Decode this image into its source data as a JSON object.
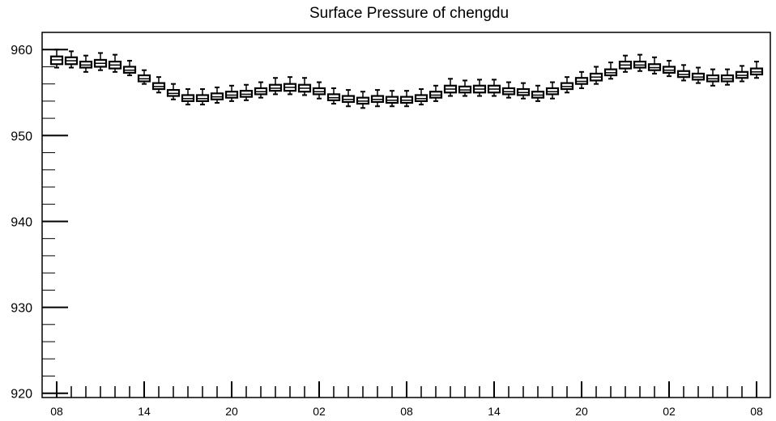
{
  "chart_data": {
    "type": "box",
    "title": "Surface Pressure of chengdu",
    "xlabel": "",
    "ylabel": "",
    "ylim": [
      919.5,
      962
    ],
    "y_ticks": [
      920,
      930,
      940,
      950,
      960
    ],
    "x_tick_labels": [
      "08",
      "14",
      "20",
      "02",
      "08",
      "14",
      "20",
      "02",
      "08"
    ],
    "x_tick_label_positions": [
      0,
      6,
      12,
      18,
      24,
      30,
      36,
      42,
      48
    ],
    "grid": false,
    "series": [
      {
        "hours": [
          0,
          1,
          2,
          3,
          4,
          5,
          6,
          7,
          8,
          9,
          10,
          11,
          12,
          13,
          14,
          15,
          16,
          17,
          18,
          19,
          20,
          21,
          22,
          23,
          24,
          25,
          26,
          27,
          28,
          29,
          30,
          31,
          32,
          33,
          34,
          35,
          36,
          37,
          38,
          39,
          40,
          41,
          42,
          43,
          44,
          45,
          46,
          47,
          48
        ],
        "median": [
          958.8,
          958.7,
          958.2,
          958.4,
          958.2,
          957.6,
          956.6,
          955.7,
          954.9,
          954.3,
          954.3,
          954.5,
          954.7,
          954.8,
          955.1,
          955.5,
          955.6,
          955.5,
          955.1,
          954.4,
          954.2,
          954.0,
          954.2,
          954.1,
          954.1,
          954.3,
          954.7,
          955.4,
          955.3,
          955.4,
          955.4,
          955.1,
          955.0,
          954.7,
          955.1,
          955.7,
          956.3,
          956.8,
          957.3,
          958.2,
          958.2,
          957.9,
          957.6,
          957.1,
          956.8,
          956.6,
          956.6,
          957.0,
          957.4
        ],
        "q1": [
          958.3,
          958.3,
          957.9,
          958.0,
          957.8,
          957.3,
          956.3,
          955.4,
          954.6,
          954.0,
          954.0,
          954.2,
          954.4,
          954.5,
          954.8,
          955.2,
          955.2,
          955.1,
          954.8,
          954.1,
          953.9,
          953.7,
          953.9,
          953.8,
          953.8,
          954.0,
          954.4,
          955.0,
          955.0,
          955.0,
          955.0,
          954.8,
          954.7,
          954.4,
          954.8,
          955.4,
          956.0,
          956.4,
          957.0,
          957.8,
          957.9,
          957.6,
          957.3,
          956.8,
          956.5,
          956.3,
          956.3,
          956.7,
          957.1
        ],
        "q3": [
          959.2,
          959.1,
          958.6,
          958.8,
          958.6,
          958.0,
          957.0,
          956.1,
          955.3,
          954.7,
          954.7,
          954.9,
          955.1,
          955.2,
          955.5,
          955.9,
          956.0,
          955.9,
          955.5,
          954.8,
          954.6,
          954.4,
          954.6,
          954.5,
          954.5,
          954.7,
          955.1,
          955.8,
          955.7,
          955.8,
          955.8,
          955.5,
          955.4,
          955.1,
          955.5,
          956.1,
          956.7,
          957.2,
          957.7,
          958.6,
          958.6,
          958.3,
          958.0,
          957.5,
          957.2,
          957.0,
          957.0,
          957.4,
          957.8
        ],
        "whisker_low": [
          957.9,
          957.9,
          957.4,
          957.6,
          957.4,
          957.0,
          956.0,
          955.0,
          954.2,
          953.6,
          953.6,
          953.8,
          954.0,
          954.1,
          954.4,
          954.8,
          954.8,
          954.7,
          954.3,
          953.7,
          953.4,
          953.2,
          953.4,
          953.4,
          953.4,
          953.6,
          954.0,
          954.6,
          954.6,
          954.6,
          954.6,
          954.4,
          954.3,
          954.0,
          954.3,
          955.0,
          955.5,
          956.0,
          956.6,
          957.4,
          957.5,
          957.2,
          956.9,
          956.4,
          956.1,
          955.8,
          955.9,
          956.3,
          956.7
        ],
        "whisker_high": [
          960.0,
          959.8,
          959.3,
          959.6,
          959.4,
          958.7,
          957.6,
          956.8,
          956.0,
          955.4,
          955.4,
          955.6,
          955.8,
          955.9,
          956.2,
          956.7,
          956.8,
          956.7,
          956.2,
          955.5,
          955.3,
          955.1,
          955.3,
          955.2,
          955.2,
          955.4,
          955.8,
          956.6,
          956.4,
          956.5,
          956.5,
          956.2,
          956.1,
          955.8,
          956.2,
          956.8,
          957.4,
          958.0,
          958.5,
          959.3,
          959.4,
          959.1,
          958.7,
          958.2,
          957.9,
          957.7,
          957.7,
          958.1,
          958.6
        ]
      }
    ]
  }
}
